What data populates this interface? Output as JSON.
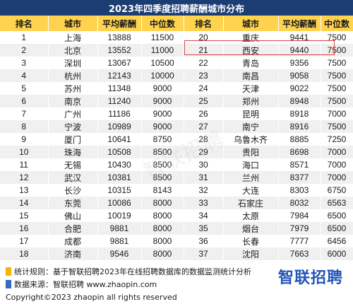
{
  "title": "2023年四季度招聘薪酬城市分布",
  "headers": [
    "排名",
    "城市",
    "平均薪酬",
    "中位数",
    "排名",
    "城市",
    "平均薪酬",
    "中位数"
  ],
  "rows": [
    [
      [
        "1",
        "上海",
        "13888",
        "11500"
      ],
      [
        "20",
        "重庆",
        "9441",
        "7500"
      ]
    ],
    [
      [
        "2",
        "北京",
        "13552",
        "11000"
      ],
      [
        "21",
        "西安",
        "9440",
        "7500"
      ]
    ],
    [
      [
        "3",
        "深圳",
        "13067",
        "10500"
      ],
      [
        "22",
        "青岛",
        "9356",
        "7500"
      ]
    ],
    [
      [
        "4",
        "杭州",
        "12143",
        "10000"
      ],
      [
        "23",
        "南昌",
        "9058",
        "7500"
      ]
    ],
    [
      [
        "5",
        "苏州",
        "11348",
        "9000"
      ],
      [
        "24",
        "天津",
        "9022",
        "7500"
      ]
    ],
    [
      [
        "6",
        "南京",
        "11240",
        "9000"
      ],
      [
        "25",
        "郑州",
        "8948",
        "7500"
      ]
    ],
    [
      [
        "7",
        "广州",
        "11186",
        "9000"
      ],
      [
        "26",
        "昆明",
        "8918",
        "7000"
      ]
    ],
    [
      [
        "8",
        "宁波",
        "10989",
        "9000"
      ],
      [
        "27",
        "南宁",
        "8916",
        "7500"
      ]
    ],
    [
      [
        "9",
        "厦门",
        "10641",
        "8750"
      ],
      [
        "28",
        "乌鲁木齐",
        "8885",
        "7250"
      ]
    ],
    [
      [
        "10",
        "珠海",
        "10508",
        "8500"
      ],
      [
        "29",
        "贵阳",
        "8698",
        "7000"
      ]
    ],
    [
      [
        "11",
        "无锡",
        "10430",
        "8500"
      ],
      [
        "30",
        "海口",
        "8571",
        "7000"
      ]
    ],
    [
      [
        "12",
        "武汉",
        "10381",
        "8500"
      ],
      [
        "31",
        "兰州",
        "8377",
        "7000"
      ]
    ],
    [
      [
        "13",
        "长沙",
        "10315",
        "8143"
      ],
      [
        "32",
        "大连",
        "8303",
        "6750"
      ]
    ],
    [
      [
        "14",
        "东莞",
        "10086",
        "8000"
      ],
      [
        "33",
        "石家庄",
        "8032",
        "6563"
      ]
    ],
    [
      [
        "15",
        "佛山",
        "10019",
        "8000"
      ],
      [
        "34",
        "太原",
        "7984",
        "6500"
      ]
    ],
    [
      [
        "16",
        "合肥",
        "9881",
        "8000"
      ],
      [
        "35",
        "烟台",
        "7979",
        "6500"
      ]
    ],
    [
      [
        "17",
        "成都",
        "9881",
        "8000"
      ],
      [
        "36",
        "长春",
        "7777",
        "6456"
      ]
    ],
    [
      [
        "18",
        "济南",
        "9546",
        "8000"
      ],
      [
        "37",
        "沈阳",
        "7663",
        "6000"
      ]
    ],
    [
      [
        "19",
        "福州",
        "9473",
        "7500"
      ],
      [
        "38",
        "哈尔滨",
        "7554",
        "6000"
      ]
    ]
  ],
  "footer": {
    "stat_rule": "统计规则：基于智联招聘2023年在线招聘数据库的数据监测统计分析",
    "source": "数据来源：智联招聘 www.zhaopin.com",
    "copyright": "Copyright©2023 zhaopin all rights reserved",
    "brand": "智联招聘"
  },
  "watermark": "智联招聘",
  "colors": {
    "title_bg": "#1c3d73",
    "header_bg": "#ffd34d",
    "row_alt_bg": "#f0f0f0",
    "highlight": "#d94646",
    "brand_blue": "#2456b8",
    "bullet_yellow": "#f5b400",
    "bullet_blue": "#3a66c4"
  }
}
